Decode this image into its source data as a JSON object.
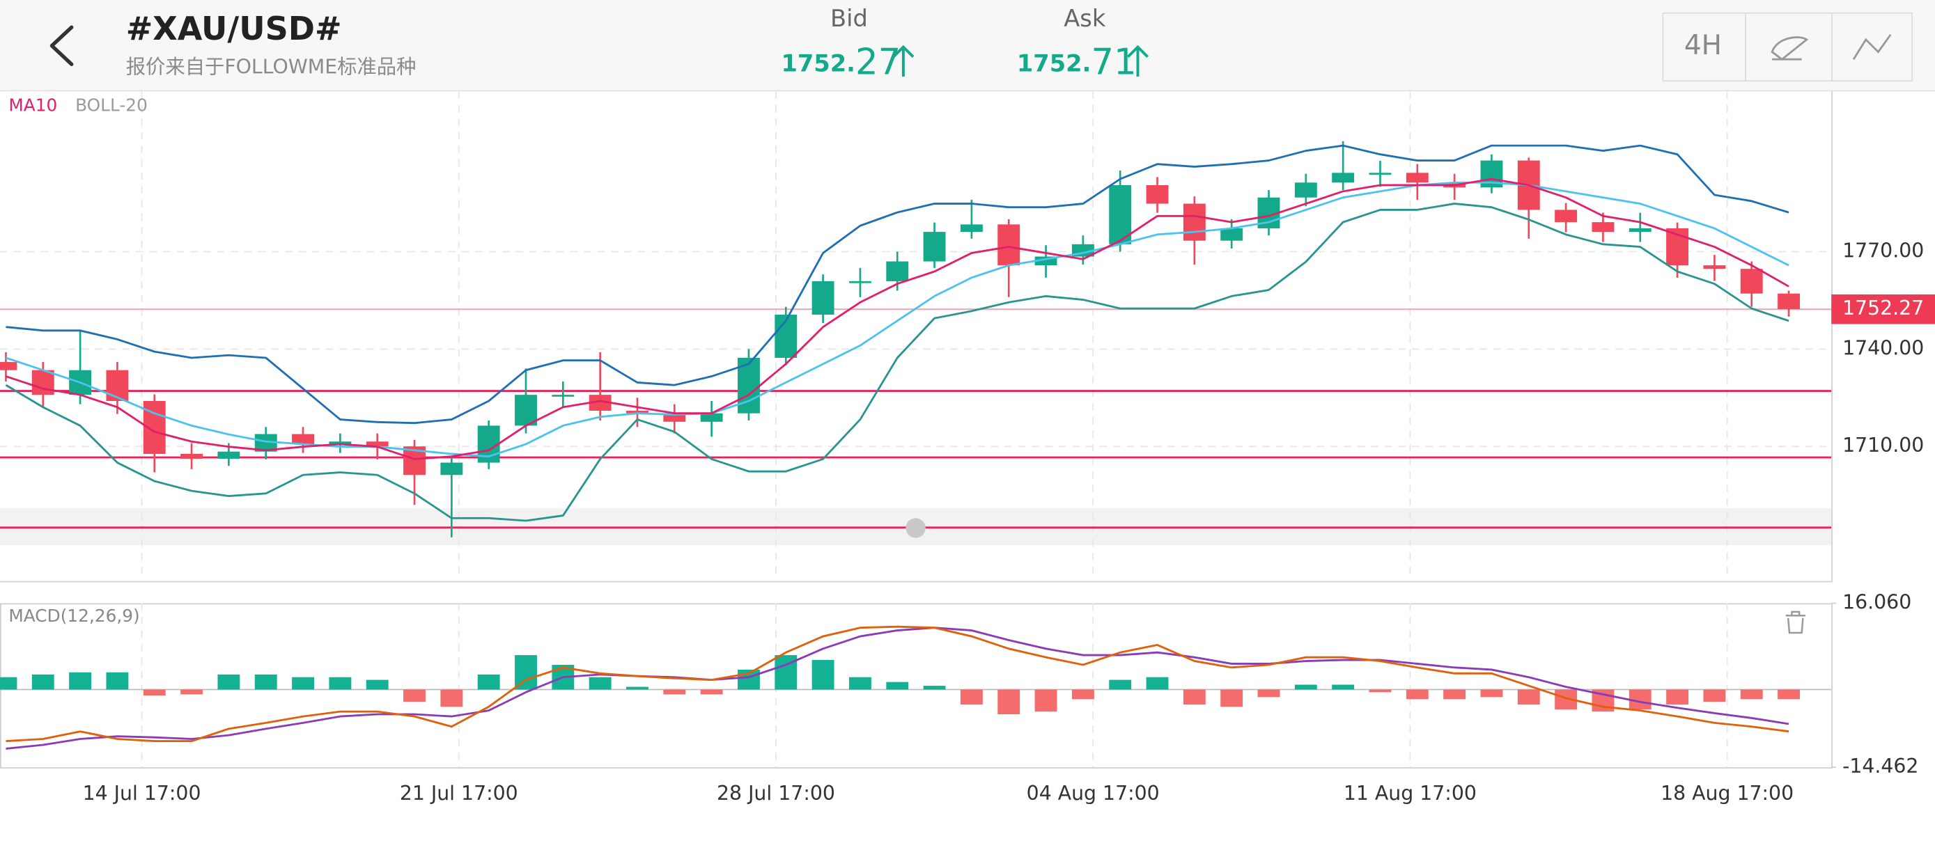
{
  "header": {
    "title": "#XAU/USD#",
    "subtitle": "报价来自于FOLLOWME标准品种",
    "bid": {
      "label": "Bid",
      "price_main": "1752.",
      "price_pips": "27"
    },
    "ask": {
      "label": "Ask",
      "price_main": "1752.",
      "price_pips": "71"
    },
    "timeframe": "4H"
  },
  "chart_data": {
    "type": "candlestick",
    "x": [
      -3,
      -2.18,
      -1.36,
      -0.54,
      0.28,
      1.1,
      1.92,
      2.74,
      3.56,
      4.38,
      5.2,
      6.02,
      6.84,
      7.66,
      8.48,
      9.3,
      10.12,
      10.94,
      11.76,
      12.58,
      13.4,
      14.22,
      15.04,
      15.86,
      16.68,
      17.5,
      18.32,
      19.14,
      19.96,
      20.78,
      21.6,
      22.42,
      23.24,
      24.06,
      24.88,
      25.7,
      26.52,
      27.34,
      28.16,
      28.98,
      29.8,
      30.62,
      31.44,
      32.26,
      33.08,
      33.9,
      34.72,
      35.54,
      36.36
    ],
    "open": [
      1736.0,
      1733.5,
      1725.9,
      1733.5,
      1724.0,
      1707.7,
      1706.2,
      1708.4,
      1713.8,
      1710.7,
      1711.5,
      1710.0,
      1701.2,
      1705.0,
      1716.4,
      1725.9,
      1725.9,
      1721.0,
      1720.2,
      1717.6,
      1720.2,
      1737.3,
      1750.6,
      1760.9,
      1760.9,
      1767.0,
      1776.1,
      1778.4,
      1765.8,
      1768.5,
      1772.3,
      1790.5,
      1784.8,
      1773.4,
      1777.2,
      1786.7,
      1791.3,
      1794.3,
      1794.3,
      1791.3,
      1789.8,
      1798.1,
      1782.9,
      1779.1,
      1776.1,
      1777.2,
      1765.8,
      1764.7,
      1757.1
    ],
    "high": [
      1739,
      1736,
      1746,
      1736,
      1726,
      1711,
      1711,
      1716,
      1716,
      1714,
      1714,
      1712,
      1707,
      1718,
      1734,
      1730,
      1739,
      1725,
      1723,
      1724,
      1740,
      1753,
      1763,
      1765,
      1770,
      1779,
      1786,
      1780,
      1772,
      1775,
      1795,
      1793,
      1787,
      1780,
      1789,
      1794,
      1804,
      1798,
      1797,
      1794,
      1800,
      1799,
      1785,
      1782,
      1782,
      1779,
      1769,
      1767,
      1758
    ],
    "low": [
      1730,
      1722,
      1723,
      1720,
      1702,
      1703,
      1704,
      1706,
      1708,
      1708,
      1706,
      1692,
      1682,
      1703,
      1714,
      1722,
      1718,
      1716,
      1714,
      1713,
      1718,
      1735,
      1748,
      1756,
      1758,
      1765,
      1774,
      1756,
      1762,
      1766,
      1770,
      1782,
      1766,
      1771,
      1775,
      1784,
      1789,
      1790,
      1786,
      1786,
      1788,
      1774,
      1776,
      1773,
      1773,
      1762,
      1761,
      1753,
      1750
    ],
    "close": [
      1733.5,
      1725.9,
      1733.5,
      1724.0,
      1707.7,
      1706.2,
      1708.4,
      1713.8,
      1710.7,
      1711.5,
      1710.0,
      1701.2,
      1705.0,
      1716.4,
      1725.9,
      1725.9,
      1721.0,
      1720.2,
      1717.6,
      1720.2,
      1737.3,
      1750.6,
      1760.9,
      1760.9,
      1767.0,
      1776.1,
      1778.4,
      1765.8,
      1768.5,
      1772.3,
      1790.5,
      1784.8,
      1773.4,
      1777.2,
      1786.7,
      1791.3,
      1794.3,
      1794.3,
      1791.3,
      1789.8,
      1798.1,
      1782.9,
      1779.1,
      1776.1,
      1777.2,
      1765.8,
      1764.7,
      1757.1,
      1752.3
    ],
    "up_color": "#14a98b",
    "down_color": "#f0475a",
    "xlim": [
      -3.13,
      37.3
    ],
    "xticks": [
      {
        "value": 0,
        "label": "14 Jul 17:00"
      },
      {
        "value": 7,
        "label": "21 Jul 17:00"
      },
      {
        "value": 14,
        "label": "28 Jul 17:00"
      },
      {
        "value": 21,
        "label": "04 Aug 17:00"
      },
      {
        "value": 28,
        "label": "11 Aug 17:00"
      },
      {
        "value": 35,
        "label": "18 Aug 17:00"
      }
    ],
    "ylim": [
      1668.9,
      1819.4
    ],
    "yticks": [
      {
        "value": 1770,
        "label": "1770.00"
      },
      {
        "value": 1740,
        "label": "1740.00"
      },
      {
        "value": 1710,
        "label": "1710.00"
      }
    ],
    "grid": true,
    "last_price": 1752.27,
    "last_price_color": "#ee3b55",
    "hlines": [
      1727.1,
      1706.6,
      1685.0
    ],
    "hline_color": "#e8235a",
    "ma": {
      "name": "MA10",
      "color": "#e0206b",
      "values": [
        1731.6,
        1727.8,
        1725.9,
        1722.1,
        1714.5,
        1711.5,
        1709.9,
        1708.8,
        1709.9,
        1710.7,
        1709.9,
        1706.1,
        1706.9,
        1708.8,
        1716.4,
        1722.1,
        1724.0,
        1722.1,
        1720.2,
        1720.2,
        1725.9,
        1735.4,
        1746.8,
        1754.4,
        1760.1,
        1763.9,
        1769.6,
        1771.5,
        1769.6,
        1767.7,
        1773.4,
        1781.0,
        1781.0,
        1779.1,
        1781.0,
        1784.8,
        1788.6,
        1790.5,
        1790.5,
        1790.5,
        1792.4,
        1790.5,
        1786.7,
        1781.0,
        1779.1,
        1775.3,
        1771.5,
        1765.8,
        1759.3
      ]
    },
    "boll": {
      "name": "BOLL-20",
      "label_color": "#9a9a9a",
      "upper": {
        "color": "#1f6fb5",
        "values": [
          1746.8,
          1745.7,
          1745.7,
          1743.0,
          1739.2,
          1737.3,
          1738.1,
          1737.3,
          1727.8,
          1718.3,
          1717.5,
          1717.2,
          1718.3,
          1724.0,
          1733.5,
          1736.5,
          1736.5,
          1729.7,
          1728.9,
          1731.6,
          1735.4,
          1748.7,
          1769.6,
          1778.0,
          1782.1,
          1784.8,
          1784.8,
          1783.7,
          1783.7,
          1784.8,
          1792.4,
          1797.0,
          1796.2,
          1797.0,
          1798.1,
          1801.1,
          1802.7,
          1800.0,
          1798.1,
          1798.1,
          1802.7,
          1802.7,
          1802.7,
          1801.1,
          1802.7,
          1800.0,
          1787.5,
          1785.6,
          1782.1
        ]
      },
      "middle": {
        "color": "#4cc3ee",
        "values": [
          1737.3,
          1733.5,
          1729.7,
          1725.1,
          1720.2,
          1716.4,
          1713.7,
          1711.5,
          1710.7,
          1709.9,
          1709.9,
          1708.8,
          1707.7,
          1706.9,
          1710.7,
          1716.4,
          1719.1,
          1720.2,
          1719.8,
          1720.2,
          1724.0,
          1729.7,
          1735.4,
          1741.1,
          1748.7,
          1756.3,
          1762.0,
          1765.8,
          1767.7,
          1769.6,
          1772.3,
          1775.3,
          1776.1,
          1777.2,
          1779.1,
          1782.9,
          1786.7,
          1788.6,
          1790.5,
          1791.3,
          1791.3,
          1790.5,
          1788.6,
          1786.7,
          1784.8,
          1781.0,
          1777.2,
          1771.5,
          1765.8
        ]
      },
      "lower": {
        "color": "#2a9590",
        "values": [
          1728.9,
          1722.1,
          1716.4,
          1705.0,
          1699.3,
          1696.3,
          1694.7,
          1695.5,
          1701.2,
          1702.0,
          1701.2,
          1695.5,
          1687.9,
          1687.9,
          1687.1,
          1688.7,
          1706.1,
          1718.3,
          1714.5,
          1706.1,
          1702.3,
          1702.3,
          1706.1,
          1718.3,
          1737.3,
          1749.5,
          1751.7,
          1754.4,
          1756.3,
          1755.2,
          1752.5,
          1752.5,
          1752.5,
          1756.3,
          1758.2,
          1766.9,
          1779.1,
          1782.9,
          1782.9,
          1784.8,
          1783.7,
          1779.9,
          1775.3,
          1772.3,
          1771.5,
          1763.9,
          1760.1,
          1752.5,
          1748.7
        ]
      }
    },
    "macd": {
      "name": "MACD(12,26,9)",
      "ylim": [
        -14.462,
        16.06
      ],
      "yticks": [
        {
          "value": 16.06,
          "label": "16.060"
        },
        {
          "value": -14.462,
          "label": "-14.462"
        }
      ],
      "pos_color": "#14b294",
      "neg_color": "#f56c6c",
      "histogram": [
        2.3,
        2.8,
        3.2,
        3.2,
        -1.1,
        -0.9,
        2.8,
        2.8,
        2.3,
        2.3,
        1.8,
        -2.3,
        -3.2,
        2.8,
        6.4,
        4.6,
        2.3,
        0.5,
        -0.9,
        -0.9,
        3.7,
        6.4,
        5.5,
        2.3,
        1.4,
        0.7,
        -2.8,
        -4.6,
        -4.1,
        -1.8,
        1.8,
        2.3,
        -2.8,
        -3.2,
        -1.4,
        0.9,
        0.9,
        -0.5,
        -1.8,
        -1.8,
        -1.4,
        -2.8,
        -3.7,
        -4.1,
        -3.7,
        -2.8,
        -2.3,
        -1.8,
        -1.8
      ],
      "dif": {
        "color": "#e0600c",
        "values": [
          -9.6,
          -9.2,
          -7.8,
          -9.2,
          -9.6,
          -9.6,
          -7.3,
          -6.2,
          -5.0,
          -4.1,
          -4.1,
          -5.0,
          -6.9,
          -3.2,
          1.8,
          4.1,
          3.0,
          2.5,
          2.1,
          1.8,
          3.0,
          6.9,
          9.9,
          11.5,
          11.7,
          11.5,
          9.9,
          7.6,
          6.0,
          4.6,
          6.9,
          8.3,
          5.3,
          4.1,
          4.6,
          6.0,
          6.0,
          5.3,
          4.1,
          3.0,
          3.0,
          0.7,
          -1.6,
          -3.2,
          -3.9,
          -5.0,
          -6.2,
          -6.9,
          -7.8
        ]
      },
      "dea": {
        "color": "#8a3bb8",
        "values": [
          -11.0,
          -10.3,
          -9.2,
          -8.7,
          -8.9,
          -9.2,
          -8.5,
          -7.3,
          -6.2,
          -5.0,
          -4.6,
          -4.6,
          -5.0,
          -3.9,
          -0.5,
          2.3,
          2.8,
          2.5,
          2.3,
          1.8,
          2.3,
          4.6,
          7.6,
          9.9,
          11.0,
          11.5,
          11.0,
          9.2,
          7.6,
          6.4,
          6.4,
          6.9,
          6.0,
          4.8,
          4.8,
          5.3,
          5.5,
          5.5,
          4.8,
          4.1,
          3.7,
          2.3,
          0.5,
          -0.9,
          -2.3,
          -3.4,
          -4.4,
          -5.3,
          -6.4
        ]
      }
    }
  }
}
